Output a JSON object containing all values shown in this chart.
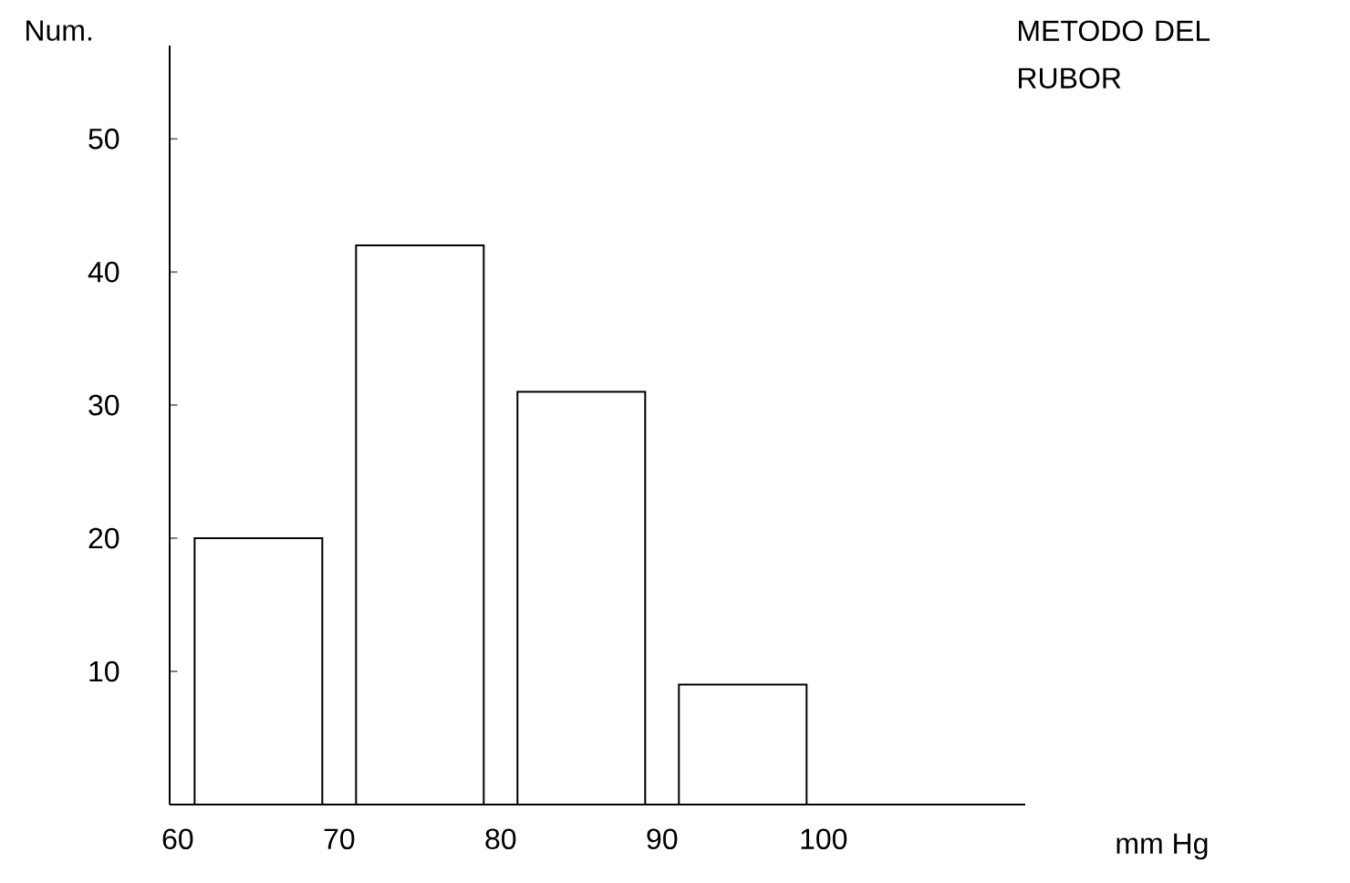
{
  "chart_data": {
    "type": "bar",
    "title": "METODO DEL RUBOR",
    "ylabel": "Num.",
    "xlabel": "mm Hg",
    "x": [
      65,
      75,
      85,
      95
    ],
    "values": [
      20,
      42,
      31,
      9
    ],
    "color": "#000000",
    "xlim": [
      59.5,
      112.5
    ],
    "ylim": [
      0,
      57
    ],
    "xticks": [
      60,
      70,
      80,
      90,
      100
    ],
    "yticks": [
      10,
      20,
      30,
      40,
      50
    ]
  }
}
